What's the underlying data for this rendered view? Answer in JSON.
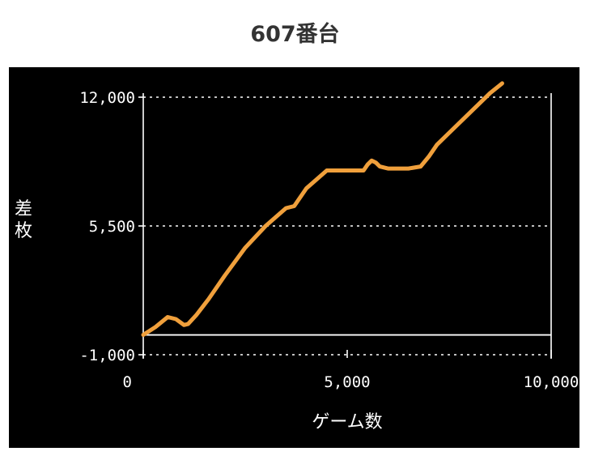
{
  "title": "607番台",
  "chart_data": {
    "type": "line",
    "title": "607番台",
    "xlabel": "ゲーム数",
    "ylabel": "差枚",
    "xlim": [
      0,
      10000
    ],
    "ylim": [
      -1000,
      12000
    ],
    "x_ticks": [
      0,
      5000,
      10000
    ],
    "x_tick_labels": [
      "0",
      "5,000",
      "10,000"
    ],
    "y_ticks": [
      -1000,
      5500,
      12000
    ],
    "y_tick_labels": [
      "-1,000",
      "5,500",
      "12,000"
    ],
    "grid": "dotted horizontal at y ticks",
    "baseline": 0,
    "series": [
      {
        "color": "#F0A03C",
        "x": [
          0,
          300,
          600,
          800,
          1000,
          1100,
          1300,
          1600,
          2000,
          2500,
          3000,
          3500,
          3700,
          4000,
          4500,
          4900,
          5400,
          5500,
          5600,
          5700,
          5800,
          6000,
          6500,
          6800,
          7000,
          7200,
          7500,
          8000,
          8500,
          8800
        ],
        "y": [
          0,
          400,
          900,
          800,
          500,
          550,
          1000,
          1800,
          3000,
          4400,
          5500,
          6400,
          6500,
          7400,
          8300,
          8300,
          8300,
          8600,
          8800,
          8700,
          8500,
          8400,
          8400,
          8500,
          9000,
          9600,
          10200,
          11200,
          12200,
          12700
        ]
      }
    ]
  },
  "colors": {
    "background": "#000000",
    "line": "#F0A03C",
    "axis": "#FFFFFF",
    "grid": "#FFFFFF",
    "title_text": "#333333"
  }
}
